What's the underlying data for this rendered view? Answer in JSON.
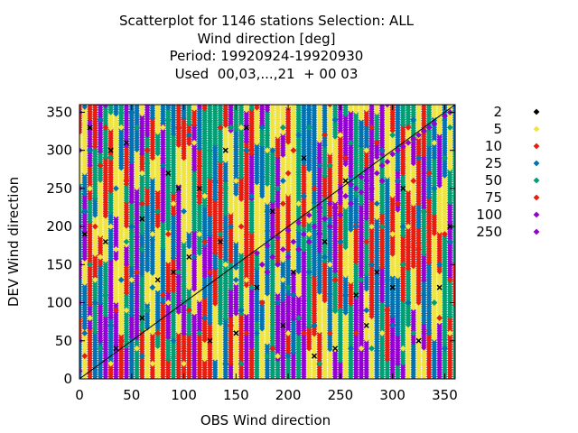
{
  "title_lines": [
    "Scatterplot for 1146 stations Selection: ALL",
    "Wind direction [deg]",
    "Period: 19920924-19920930",
    "Used  00,03,...,21  + 00 03"
  ],
  "chart_data": {
    "type": "scatter",
    "xlabel": "OBS Wind direction",
    "ylabel": "DEV Wind direction",
    "xlim": [
      0,
      360
    ],
    "ylim": [
      0,
      360
    ],
    "x_ticks": [
      0,
      50,
      100,
      150,
      200,
      250,
      300,
      350
    ],
    "y_ticks": [
      0,
      50,
      100,
      150,
      200,
      250,
      300,
      350
    ],
    "grid": false,
    "diagonal_reference_line": true,
    "legend_placement": "right",
    "legend": [
      {
        "label": "2",
        "color": "#000000"
      },
      {
        "label": "5",
        "color": "#f0e442"
      },
      {
        "label": "10",
        "color": "#e51e10"
      },
      {
        "label": "25",
        "color": "#0072b2"
      },
      {
        "label": "50",
        "color": "#009e73"
      },
      {
        "label": "75",
        "color": "#e51e10"
      },
      {
        "label": "100",
        "color": "#9400d3"
      },
      {
        "label": "250",
        "color": "#9400d3"
      }
    ],
    "x_columns_step": 5,
    "series": [
      {
        "name": "100",
        "color": "#9400d3",
        "points": [
          [
            170,
            165
          ],
          [
            180,
            175
          ],
          [
            190,
            185
          ],
          [
            200,
            195
          ],
          [
            210,
            205
          ],
          [
            220,
            215
          ],
          [
            230,
            225
          ],
          [
            240,
            230
          ],
          [
            250,
            245
          ],
          [
            260,
            255
          ],
          [
            270,
            265
          ],
          [
            280,
            275
          ],
          [
            290,
            280
          ],
          [
            300,
            295
          ],
          [
            310,
            305
          ],
          [
            320,
            315
          ],
          [
            330,
            325
          ],
          [
            340,
            335
          ],
          [
            350,
            345
          ],
          [
            355,
            350
          ],
          [
            175,
            150
          ],
          [
            185,
            160
          ],
          [
            195,
            170
          ],
          [
            205,
            180
          ],
          [
            215,
            190
          ],
          [
            225,
            200
          ],
          [
            235,
            210
          ],
          [
            245,
            225
          ],
          [
            255,
            240
          ],
          [
            265,
            250
          ],
          [
            275,
            260
          ],
          [
            285,
            270
          ],
          [
            295,
            285
          ],
          [
            305,
            300
          ],
          [
            315,
            310
          ],
          [
            325,
            320
          ],
          [
            335,
            330
          ],
          [
            345,
            340
          ],
          [
            180,
            140
          ],
          [
            190,
            150
          ],
          [
            200,
            160
          ],
          [
            210,
            170
          ],
          [
            220,
            180
          ],
          [
            230,
            190
          ],
          [
            240,
            200
          ],
          [
            250,
            215
          ],
          [
            260,
            230
          ],
          [
            270,
            245
          ],
          [
            280,
            250
          ],
          [
            290,
            260
          ],
          [
            0,
            10
          ],
          [
            0,
            50
          ],
          [
            0,
            100
          ],
          [
            0,
            150
          ],
          [
            0,
            200
          ],
          [
            0,
            250
          ],
          [
            0,
            300
          ],
          [
            0,
            350
          ]
        ]
      },
      {
        "name": "25",
        "color": "#0072b2",
        "points": [
          [
            5,
            60
          ],
          [
            5,
            220
          ],
          [
            10,
            300
          ],
          [
            15,
            100
          ],
          [
            20,
            340
          ],
          [
            30,
            70
          ],
          [
            35,
            250
          ],
          [
            40,
            130
          ],
          [
            50,
            200
          ],
          [
            50,
            350
          ],
          [
            60,
            30
          ],
          [
            70,
            120
          ],
          [
            80,
            280
          ],
          [
            90,
            50
          ],
          [
            100,
            220
          ],
          [
            105,
            320
          ],
          [
            110,
            160
          ],
          [
            120,
            80
          ],
          [
            130,
            260
          ],
          [
            140,
            20
          ],
          [
            150,
            130
          ],
          [
            160,
            300
          ],
          [
            170,
            60
          ],
          [
            180,
            220
          ],
          [
            190,
            100
          ],
          [
            200,
            30
          ],
          [
            210,
            320
          ],
          [
            220,
            140
          ],
          [
            230,
            280
          ],
          [
            240,
            90
          ],
          [
            250,
            180
          ],
          [
            260,
            40
          ],
          [
            270,
            330
          ],
          [
            280,
            150
          ],
          [
            290,
            300
          ],
          [
            300,
            70
          ],
          [
            310,
            200
          ],
          [
            320,
            340
          ],
          [
            330,
            110
          ],
          [
            340,
            250
          ],
          [
            350,
            40
          ],
          [
            355,
            180
          ],
          [
            145,
            200
          ],
          [
            155,
            90
          ],
          [
            165,
            240
          ],
          [
            175,
            330
          ],
          [
            185,
            300
          ],
          [
            195,
            260
          ],
          [
            205,
            110
          ],
          [
            215,
            240
          ],
          [
            225,
            70
          ],
          [
            235,
            160
          ],
          [
            245,
            340
          ],
          [
            255,
            110
          ],
          [
            265,
            200
          ],
          [
            275,
            90
          ],
          [
            285,
            230
          ],
          [
            295,
            130
          ],
          [
            305,
            260
          ],
          [
            315,
            100
          ],
          [
            325,
            290
          ],
          [
            335,
            60
          ],
          [
            345,
            150
          ]
        ]
      },
      {
        "name": "50",
        "color": "#009e73",
        "points": [
          [
            10,
            150
          ],
          [
            20,
            40
          ],
          [
            30,
            290
          ],
          [
            45,
            180
          ],
          [
            55,
            330
          ],
          [
            65,
            90
          ],
          [
            75,
            220
          ],
          [
            85,
            340
          ],
          [
            95,
            140
          ],
          [
            115,
            60
          ],
          [
            125,
            300
          ],
          [
            135,
            190
          ],
          [
            145,
            330
          ],
          [
            155,
            20
          ],
          [
            165,
            120
          ],
          [
            180,
            30
          ],
          [
            190,
            250
          ],
          [
            200,
            120
          ],
          [
            210,
            80
          ],
          [
            220,
            330
          ],
          [
            230,
            20
          ],
          [
            240,
            280
          ],
          [
            250,
            90
          ],
          [
            260,
            310
          ],
          [
            270,
            130
          ],
          [
            280,
            40
          ],
          [
            290,
            200
          ],
          [
            300,
            320
          ],
          [
            310,
            150
          ],
          [
            320,
            60
          ],
          [
            330,
            220
          ],
          [
            340,
            100
          ],
          [
            350,
            290
          ],
          [
            355,
            330
          ],
          [
            25,
            110
          ],
          [
            60,
            170
          ],
          [
            100,
            100
          ],
          [
            140,
            250
          ],
          [
            195,
            330
          ]
        ]
      },
      {
        "name": "10",
        "color": "#e51e10",
        "points": [
          [
            5,
            30
          ],
          [
            15,
            200
          ],
          [
            25,
            330
          ],
          [
            35,
            90
          ],
          [
            45,
            260
          ],
          [
            55,
            140
          ],
          [
            65,
            300
          ],
          [
            75,
            60
          ],
          [
            85,
            190
          ],
          [
            95,
            330
          ],
          [
            105,
            90
          ],
          [
            115,
            240
          ],
          [
            125,
            140
          ],
          [
            135,
            330
          ],
          [
            145,
            70
          ],
          [
            155,
            200
          ],
          [
            165,
            300
          ],
          [
            175,
            100
          ],
          [
            185,
            40
          ],
          [
            195,
            230
          ],
          [
            205,
            300
          ],
          [
            215,
            60
          ],
          [
            225,
            250
          ],
          [
            235,
            320
          ],
          [
            245,
            130
          ],
          [
            255,
            290
          ],
          [
            265,
            60
          ],
          [
            275,
            180
          ],
          [
            285,
            310
          ],
          [
            295,
            90
          ],
          [
            305,
            230
          ],
          [
            315,
            330
          ],
          [
            325,
            170
          ],
          [
            335,
            270
          ],
          [
            345,
            80
          ],
          [
            355,
            130
          ],
          [
            20,
            280
          ],
          [
            40,
            50
          ],
          [
            60,
            230
          ],
          [
            80,
            110
          ],
          [
            120,
            180
          ],
          [
            160,
            60
          ],
          [
            200,
            270
          ],
          [
            240,
            60
          ],
          [
            280,
            330
          ],
          [
            320,
            260
          ],
          [
            350,
            190
          ]
        ]
      },
      {
        "name": "5",
        "color": "#f0e442",
        "points": [
          [
            10,
            80
          ],
          [
            10,
            250
          ],
          [
            20,
            160
          ],
          [
            30,
            20
          ],
          [
            30,
            200
          ],
          [
            40,
            330
          ],
          [
            45,
            90
          ],
          [
            50,
            130
          ],
          [
            60,
            270
          ],
          [
            70,
            20
          ],
          [
            70,
            190
          ],
          [
            80,
            330
          ],
          [
            90,
            230
          ],
          [
            100,
            20
          ],
          [
            110,
            310
          ],
          [
            120,
            240
          ],
          [
            130,
            30
          ],
          [
            140,
            150
          ],
          [
            150,
            260
          ],
          [
            160,
            130
          ],
          [
            170,
            240
          ],
          [
            180,
            300
          ],
          [
            190,
            30
          ],
          [
            200,
            60
          ],
          [
            210,
            230
          ],
          [
            220,
            190
          ],
          [
            230,
            90
          ],
          [
            240,
            150
          ],
          [
            250,
            320
          ],
          [
            260,
            160
          ],
          [
            270,
            40
          ],
          [
            280,
            200
          ],
          [
            290,
            60
          ],
          [
            300,
            190
          ],
          [
            310,
            40
          ],
          [
            320,
            120
          ],
          [
            330,
            30
          ],
          [
            340,
            310
          ],
          [
            350,
            230
          ],
          [
            355,
            60
          ],
          [
            15,
            130
          ],
          [
            35,
            170
          ],
          [
            55,
            40
          ],
          [
            85,
            100
          ],
          [
            115,
            190
          ],
          [
            155,
            330
          ],
          [
            195,
            130
          ],
          [
            235,
            40
          ],
          [
            275,
            300
          ],
          [
            315,
            200
          ],
          [
            345,
            340
          ]
        ]
      },
      {
        "name": "2",
        "color": "#000000",
        "points": [
          [
            5,
            190
          ],
          [
            10,
            330
          ],
          [
            25,
            180
          ],
          [
            35,
            40
          ],
          [
            45,
            310
          ],
          [
            60,
            210
          ],
          [
            75,
            130
          ],
          [
            85,
            270
          ],
          [
            95,
            250
          ],
          [
            105,
            160
          ],
          [
            115,
            250
          ],
          [
            125,
            50
          ],
          [
            135,
            180
          ],
          [
            140,
            300
          ],
          [
            150,
            60
          ],
          [
            160,
            330
          ],
          [
            170,
            120
          ],
          [
            185,
            220
          ],
          [
            195,
            70
          ],
          [
            205,
            140
          ],
          [
            215,
            290
          ],
          [
            225,
            30
          ],
          [
            235,
            180
          ],
          [
            245,
            40
          ],
          [
            255,
            260
          ],
          [
            265,
            110
          ],
          [
            275,
            70
          ],
          [
            285,
            140
          ],
          [
            300,
            120
          ],
          [
            310,
            250
          ],
          [
            325,
            50
          ],
          [
            345,
            120
          ],
          [
            355,
            200
          ],
          [
            90,
            140
          ],
          [
            60,
            80
          ],
          [
            30,
            300
          ]
        ]
      }
    ]
  }
}
